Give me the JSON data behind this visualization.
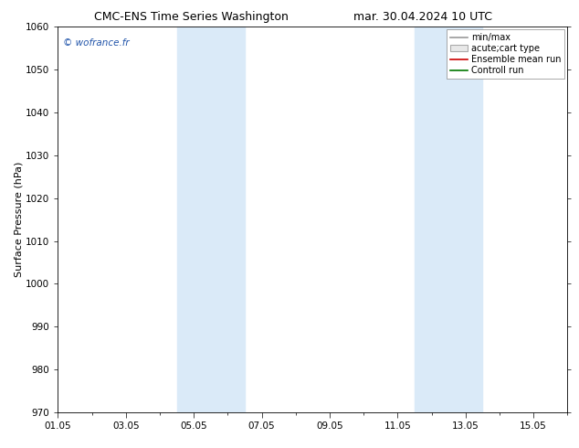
{
  "title_left": "CMC-ENS Time Series Washington",
  "title_right": "mar. 30.04.2024 10 UTC",
  "ylabel": "Surface Pressure (hPa)",
  "ylim": [
    970,
    1060
  ],
  "yticks": [
    970,
    980,
    990,
    1000,
    1010,
    1020,
    1030,
    1040,
    1050,
    1060
  ],
  "xlim": [
    0,
    15
  ],
  "xtick_labels": [
    "01.05",
    "03.05",
    "05.05",
    "07.05",
    "09.05",
    "11.05",
    "13.05",
    "15.05"
  ],
  "xtick_positions": [
    0,
    2,
    4,
    6,
    8,
    10,
    12,
    14
  ],
  "shaded_bands": [
    {
      "x_start": 3.5,
      "x_end": 4.5
    },
    {
      "x_start": 4.5,
      "x_end": 5.5
    },
    {
      "x_start": 10.5,
      "x_end": 11.5
    },
    {
      "x_start": 11.5,
      "x_end": 12.5
    }
  ],
  "shaded_color": "#daeaf8",
  "watermark": "© wofrance.fr",
  "watermark_color": "#2255aa",
  "legend_entries": [
    {
      "label": "min/max",
      "color": "#999999",
      "linestyle": "-",
      "type": "line"
    },
    {
      "label": "acute;cart type",
      "color": "#cccccc",
      "linestyle": "-",
      "type": "box"
    },
    {
      "label": "Ensemble mean run",
      "color": "#cc0000",
      "linestyle": "-",
      "type": "line"
    },
    {
      "label": "Controll run",
      "color": "#007700",
      "linestyle": "-",
      "type": "line"
    }
  ],
  "bg_color": "#ffffff",
  "title_fontsize": 9,
  "axis_label_fontsize": 8,
  "tick_fontsize": 7.5,
  "legend_fontsize": 7
}
